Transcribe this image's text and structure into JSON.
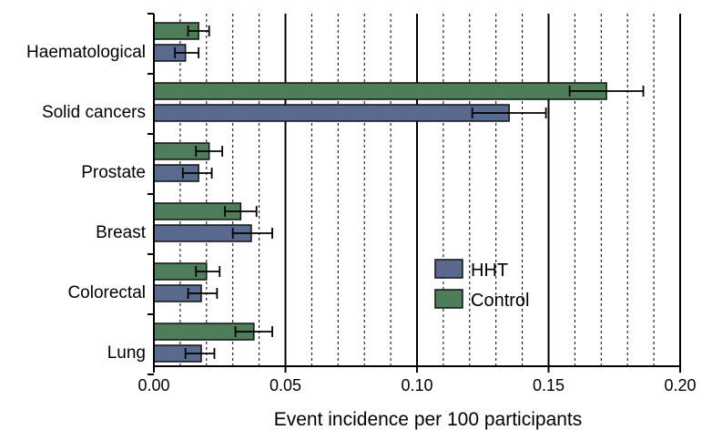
{
  "chart_data": {
    "type": "bar",
    "orientation": "horizontal",
    "xlabel": "Event incidence per 100 participants",
    "ylabel": "",
    "xlim": [
      0,
      0.2
    ],
    "x_ticks": [
      "0.00",
      "0.05",
      "0.10",
      "0.15",
      "0.20"
    ],
    "grid": "vertical dashed every 0.01, solid at major ticks",
    "legend_position": "center-right",
    "categories": [
      "Haematological",
      "Solid cancers",
      "Prostate",
      "Breast",
      "Colorectal",
      "Lung"
    ],
    "series": [
      {
        "name": "HHT",
        "color": "#5a6a8f",
        "values": [
          0.012,
          0.135,
          0.017,
          0.037,
          0.018,
          0.018
        ],
        "error_low": [
          0.008,
          0.121,
          0.011,
          0.03,
          0.013,
          0.012
        ],
        "error_high": [
          0.017,
          0.149,
          0.022,
          0.045,
          0.024,
          0.023
        ]
      },
      {
        "name": "Control",
        "color": "#4e7d5a",
        "values": [
          0.017,
          0.172,
          0.021,
          0.033,
          0.02,
          0.038
        ],
        "error_low": [
          0.013,
          0.158,
          0.016,
          0.027,
          0.016,
          0.031
        ],
        "error_high": [
          0.021,
          0.186,
          0.026,
          0.039,
          0.025,
          0.045
        ]
      }
    ]
  }
}
